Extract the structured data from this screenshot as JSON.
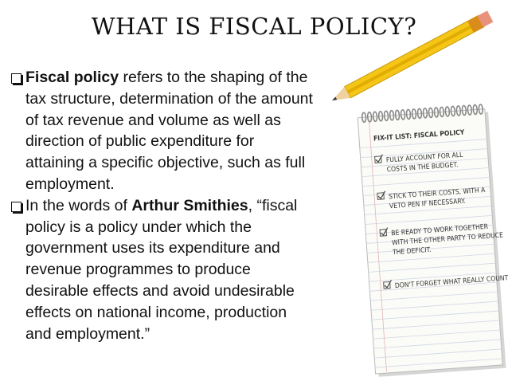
{
  "title": "WHAT IS FISCAL POLICY?",
  "bullets": [
    {
      "runs": [
        {
          "text": "Fiscal policy",
          "bold": true
        },
        {
          "text": " refers to the shaping of the tax structure, determination of the amount of tax revenue and volume as well as direction of public expenditure for attaining a specific objective, such as full employment.",
          "bold": false
        }
      ]
    },
    {
      "runs": [
        {
          "text": "In the words of ",
          "bold": false
        },
        {
          "text": "Arthur Smithies",
          "bold": true
        },
        {
          "text": ", “fiscal policy is a policy under which the government uses its expenditure and revenue programmes to produce desirable effects and avoid undesirable effects on national income, production and employment.”",
          "bold": false
        }
      ]
    }
  ],
  "notepad": {
    "heading": "FIX-IT LIST: FISCAL POLICY",
    "items": [
      [
        "FULLY ACCOUNT FOR ALL",
        "COSTS IN THE BUDGET."
      ],
      [
        "STICK TO THEIR COSTS, WITH A",
        "VETO PEN IF NECESSARY."
      ],
      [
        "BE READY TO WORK TOGETHER",
        "WITH THE OTHER PARTY TO REDUCE",
        "THE DEFICIT."
      ],
      [
        "DON'T FORGET WHAT REALLY COUNTS."
      ]
    ]
  }
}
